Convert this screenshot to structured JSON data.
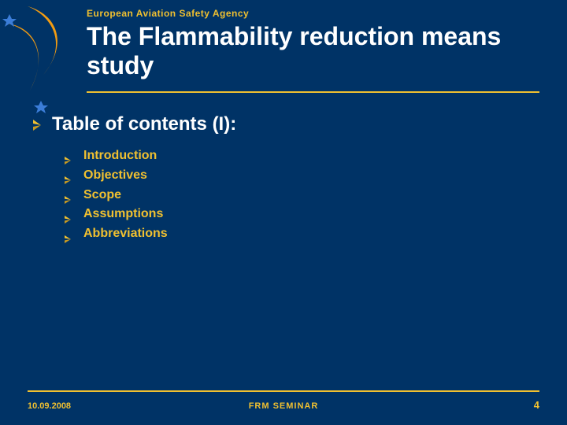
{
  "colors": {
    "background": "#003366",
    "text_yellow": "#f0c030",
    "text_white": "#ffffff",
    "rule": "#f0c030",
    "logo_orange": "#f39c12",
    "logo_blue": "#3b7dd8",
    "bullet_fill": "#f0c030"
  },
  "header": {
    "agency": "European Aviation Safety Agency",
    "title": "The Flammability reduction means study"
  },
  "section": {
    "heading": "Table of contents (I):",
    "items": [
      "Introduction",
      "Objectives",
      "Scope",
      "Assumptions",
      "Abbreviations"
    ]
  },
  "footer": {
    "date": "10.09.2008",
    "center": "FRM SEMINAR",
    "page": "4"
  },
  "typography": {
    "agency_fontsize": 12,
    "title_fontsize": 32,
    "heading_fontsize": 24,
    "item_fontsize": 16,
    "footer_fontsize": 11
  }
}
